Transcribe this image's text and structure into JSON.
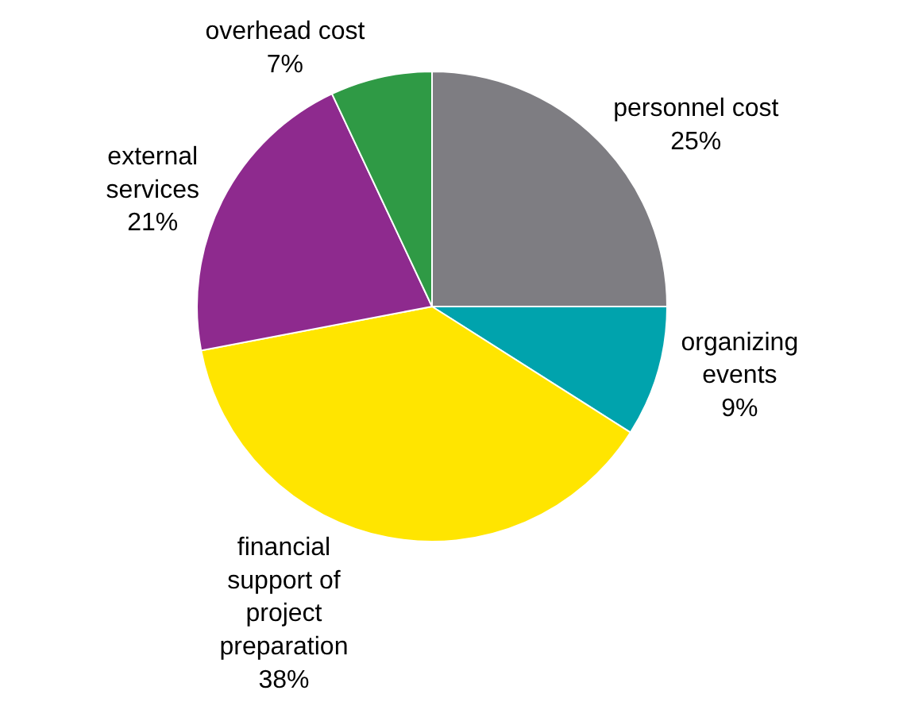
{
  "chart_data": {
    "type": "pie",
    "categories": [
      "personnel cost",
      "organizing events",
      "financial support of project preparation",
      "external services",
      "overhead cost"
    ],
    "values": [
      25,
      9,
      38,
      21,
      7
    ],
    "value_labels": [
      "25%",
      "9%",
      "38%",
      "21%",
      "7%"
    ],
    "colors": [
      "#7e7d82",
      "#00a3ad",
      "#ffe500",
      "#8e2a8e",
      "#2f9a45"
    ]
  }
}
